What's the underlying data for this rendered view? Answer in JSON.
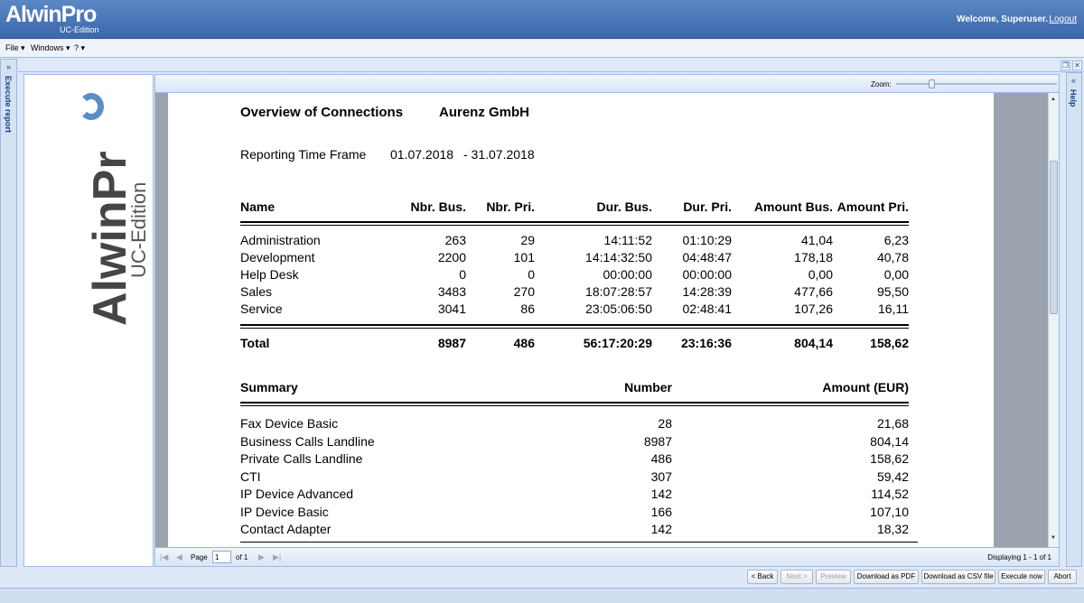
{
  "app": {
    "logo_main": "AlwinPro",
    "logo_sub": "UC-Edition",
    "welcome": "Welcome, Superuser.",
    "logout": "Logout"
  },
  "menu": [
    "File ▾",
    "Windows ▾",
    "? ▾"
  ],
  "left_panel": {
    "collapse": "»",
    "title": "Execute report"
  },
  "right_panel": {
    "collapse": "«",
    "title": "Help"
  },
  "side_logo": {
    "main": "AlwinPr",
    "sub": "UC-Edition",
    "accent": "#5b8dc9"
  },
  "toolbar": {
    "zoom_label": "Zoom:",
    "zoom_level": 0.2
  },
  "report": {
    "title": "Overview of Connections",
    "company": "Aurenz GmbH",
    "timeframe_label": "Reporting Time Frame",
    "timeframe_from": "01.07.2018",
    "timeframe_to": "- 31.07.2018",
    "table": {
      "headers": [
        "Name",
        "Nbr. Bus.",
        "Nbr. Pri.",
        "Dur. Bus.",
        "Dur. Pri.",
        "Amount Bus.",
        "Amount Pri."
      ],
      "rows": [
        [
          "Administration",
          "263",
          "29",
          "14:11:52",
          "01:10:29",
          "41,04",
          "6,23"
        ],
        [
          "Development",
          "2200",
          "101",
          "14:14:32:50",
          "04:48:47",
          "178,18",
          "40,78"
        ],
        [
          "Help Desk",
          "0",
          "0",
          "00:00:00",
          "00:00:00",
          "0,00",
          "0,00"
        ],
        [
          "Sales",
          "3483",
          "270",
          "18:07:28:57",
          "14:28:39",
          "477,66",
          "95,50"
        ],
        [
          "Service",
          "3041",
          "86",
          "23:05:06:50",
          "02:48:41",
          "107,26",
          "16,11"
        ]
      ],
      "total": [
        "Total",
        "8987",
        "486",
        "56:17:20:29",
        "23:16:36",
        "804,14",
        "158,62"
      ]
    },
    "summary": {
      "headers": [
        "Summary",
        "Number",
        "Amount (EUR)"
      ],
      "rows": [
        [
          "Fax Device Basic",
          "28",
          "21,68"
        ],
        [
          "Business Calls Landline",
          "8987",
          "804,14"
        ],
        [
          "Private Calls Landline",
          "486",
          "158,62"
        ],
        [
          "CTI",
          "307",
          "59,42"
        ],
        [
          "IP Device Advanced",
          "142",
          "114,52"
        ],
        [
          "IP Device Basic",
          "166",
          "107,10"
        ],
        [
          "Contact Adapter",
          "142",
          "18,32"
        ]
      ]
    }
  },
  "pager": {
    "page_label": "Page",
    "page_value": "1",
    "of_label": "of 1",
    "displaying": "Displaying 1 - 1 of 1"
  },
  "buttons": [
    {
      "label": "< Back",
      "enabled": true
    },
    {
      "label": "Next >",
      "enabled": false
    },
    {
      "label": "Preview",
      "enabled": false
    },
    {
      "label": "Download as PDF",
      "enabled": true
    },
    {
      "label": "Download as CSV file",
      "enabled": true
    },
    {
      "label": "Execute now",
      "enabled": true
    },
    {
      "label": "Abort",
      "enabled": true
    }
  ]
}
